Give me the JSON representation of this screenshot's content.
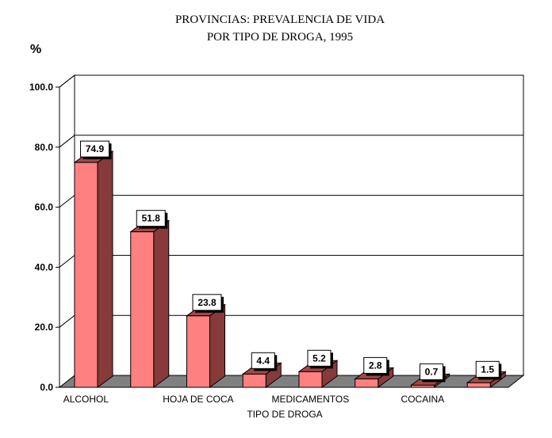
{
  "chart_data": {
    "type": "bar",
    "title_line1": "PROVINCIAS: PREVALENCIA DE VIDA",
    "title_line2": "POR TIPO DE DROGA, 1995",
    "ylabel": "%",
    "xlabel": "TIPO DE DROGA",
    "ylim": [
      0,
      100
    ],
    "yticks": [
      "0.0",
      "20.0",
      "40.0",
      "60.0",
      "80.0",
      "100.0"
    ],
    "grid": true,
    "categories": [
      "ALCOHOL",
      "",
      "HOJA DE COCA",
      "",
      "MEDICAMENTOS",
      "",
      "COCAINA",
      ""
    ],
    "values": [
      74.9,
      51.8,
      23.8,
      4.4,
      5.2,
      2.8,
      0.7,
      1.5
    ],
    "value_labels": [
      "74.9",
      "51.8",
      "23.8",
      "4.4",
      "5.2",
      "2.8",
      "0.7",
      "1.5"
    ],
    "colors": {
      "bar_front": "#ff8080",
      "bar_side": "#883a3a",
      "bar_top": "#a04848",
      "floor": "#808080"
    }
  }
}
